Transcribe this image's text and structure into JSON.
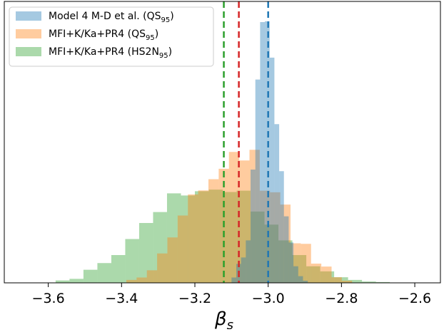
{
  "chart_data": {
    "type": "histogram",
    "xlabel": "β",
    "xlabel_sub": "s",
    "xlim": [
      -3.72,
      -2.53
    ],
    "ylim": [
      0,
      1.0
    ],
    "y_ticks_shown": false,
    "x_ticks": [
      {
        "value": -3.6,
        "label": "−3.6"
      },
      {
        "value": -3.4,
        "label": "−3.4"
      },
      {
        "value": -3.2,
        "label": "−3.2"
      },
      {
        "value": -3.0,
        "label": "−3.0"
      },
      {
        "value": -2.8,
        "label": "−2.8"
      },
      {
        "value": -2.6,
        "label": "−2.6"
      }
    ],
    "legend": {
      "placement": "top-left",
      "entries": [
        {
          "label": "Model  4  M-D et  al. (QS",
          "sub": "95",
          "suffix": ")",
          "series": "model4"
        },
        {
          "label": "MFI+K/Ka+PR4 (QS",
          "sub": "95",
          "suffix": ")",
          "series": "mfi_qs"
        },
        {
          "label": "MFI+K/Ka+PR4 (HS2N",
          "sub": "95",
          "suffix": ")",
          "series": "mfi_hs2n"
        }
      ]
    },
    "series": [
      {
        "id": "model4",
        "color": "#1f77b4",
        "alpha": 0.4,
        "bins": [
          {
            "x0": -3.1,
            "x1": -3.087,
            "h": 0.02
          },
          {
            "x0": -3.087,
            "x1": -3.074,
            "h": 0.071
          },
          {
            "x0": -3.074,
            "x1": -3.061,
            "h": 0.095
          },
          {
            "x0": -3.061,
            "x1": -3.048,
            "h": 0.159
          },
          {
            "x0": -3.048,
            "x1": -3.035,
            "h": 0.424
          },
          {
            "x0": -3.035,
            "x1": -3.022,
            "h": 0.761
          },
          {
            "x0": -3.022,
            "x1": -3.009,
            "h": 0.976
          },
          {
            "x0": -3.009,
            "x1": -2.996,
            "h": 0.979
          },
          {
            "x0": -2.996,
            "x1": -2.983,
            "h": 0.843
          },
          {
            "x0": -2.983,
            "x1": -2.97,
            "h": 0.594
          },
          {
            "x0": -2.97,
            "x1": -2.957,
            "h": 0.418
          },
          {
            "x0": -2.957,
            "x1": -2.944,
            "h": 0.249
          },
          {
            "x0": -2.944,
            "x1": -2.931,
            "h": 0.151
          },
          {
            "x0": -2.931,
            "x1": -2.918,
            "h": 0.062
          },
          {
            "x0": -2.918,
            "x1": -2.905,
            "h": 0.025
          },
          {
            "x0": -2.905,
            "x1": -2.892,
            "h": 0.008
          }
        ]
      },
      {
        "id": "mfi_qs",
        "color": "#ff7f0e",
        "alpha": 0.4,
        "bins": [
          {
            "x0": -3.387,
            "x1": -3.359,
            "h": 0.011
          },
          {
            "x0": -3.359,
            "x1": -3.331,
            "h": 0.02
          },
          {
            "x0": -3.331,
            "x1": -3.303,
            "h": 0.047
          },
          {
            "x0": -3.303,
            "x1": -3.275,
            "h": 0.11
          },
          {
            "x0": -3.275,
            "x1": -3.247,
            "h": 0.17
          },
          {
            "x0": -3.247,
            "x1": -3.219,
            "h": 0.252
          },
          {
            "x0": -3.219,
            "x1": -3.191,
            "h": 0.331
          },
          {
            "x0": -3.191,
            "x1": -3.163,
            "h": 0.346
          },
          {
            "x0": -3.163,
            "x1": -3.135,
            "h": 0.388
          },
          {
            "x0": -3.135,
            "x1": -3.107,
            "h": 0.427
          },
          {
            "x0": -3.107,
            "x1": -3.079,
            "h": 0.49
          },
          {
            "x0": -3.079,
            "x1": -3.051,
            "h": 0.458
          },
          {
            "x0": -3.051,
            "x1": -3.023,
            "h": 0.498
          },
          {
            "x0": -3.023,
            "x1": -2.995,
            "h": 0.345
          },
          {
            "x0": -2.995,
            "x1": -2.967,
            "h": 0.339
          },
          {
            "x0": -2.967,
            "x1": -2.939,
            "h": 0.293
          },
          {
            "x0": -2.939,
            "x1": -2.911,
            "h": 0.148
          },
          {
            "x0": -2.911,
            "x1": -2.883,
            "h": 0.146
          },
          {
            "x0": -2.883,
            "x1": -2.855,
            "h": 0.072
          },
          {
            "x0": -2.855,
            "x1": -2.827,
            "h": 0.061
          },
          {
            "x0": -2.827,
            "x1": -2.799,
            "h": 0.021
          },
          {
            "x0": -2.799,
            "x1": -2.771,
            "h": 0.008
          }
        ]
      },
      {
        "id": "mfi_hs2n",
        "color": "#2ca02c",
        "alpha": 0.4,
        "bins": [
          {
            "x0": -3.58,
            "x1": -3.542,
            "h": 0.009
          },
          {
            "x0": -3.542,
            "x1": -3.504,
            "h": 0.015
          },
          {
            "x0": -3.504,
            "x1": -3.466,
            "h": 0.049
          },
          {
            "x0": -3.466,
            "x1": -3.428,
            "h": 0.074
          },
          {
            "x0": -3.428,
            "x1": -3.39,
            "h": 0.104
          },
          {
            "x0": -3.39,
            "x1": -3.352,
            "h": 0.164
          },
          {
            "x0": -3.352,
            "x1": -3.314,
            "h": 0.224
          },
          {
            "x0": -3.314,
            "x1": -3.276,
            "h": 0.265
          },
          {
            "x0": -3.276,
            "x1": -3.238,
            "h": 0.335
          },
          {
            "x0": -3.238,
            "x1": -3.2,
            "h": 0.327
          },
          {
            "x0": -3.2,
            "x1": -3.162,
            "h": 0.343
          },
          {
            "x0": -3.162,
            "x1": -3.124,
            "h": 0.349
          },
          {
            "x0": -3.124,
            "x1": -3.086,
            "h": 0.34
          },
          {
            "x0": -3.086,
            "x1": -3.048,
            "h": 0.345
          },
          {
            "x0": -3.048,
            "x1": -3.01,
            "h": 0.267
          },
          {
            "x0": -3.01,
            "x1": -2.972,
            "h": 0.218
          },
          {
            "x0": -2.972,
            "x1": -2.934,
            "h": 0.159
          },
          {
            "x0": -2.934,
            "x1": -2.896,
            "h": 0.104
          },
          {
            "x0": -2.896,
            "x1": -2.858,
            "h": 0.062
          },
          {
            "x0": -2.858,
            "x1": -2.82,
            "h": 0.043
          },
          {
            "x0": -2.82,
            "x1": -2.782,
            "h": 0.021
          },
          {
            "x0": -2.782,
            "x1": -2.744,
            "h": 0.011
          },
          {
            "x0": -2.744,
            "x1": -2.706,
            "h": 0.005
          },
          {
            "x0": -2.706,
            "x1": -2.668,
            "h": 0.003
          }
        ]
      }
    ],
    "vlines": [
      {
        "x": -3.121,
        "color": "#2ca02c",
        "series": "mfi_hs2n"
      },
      {
        "x": -3.08,
        "color": "#d62728",
        "series": "mfi_qs"
      },
      {
        "x": -3.0,
        "color": "#1f77b4",
        "series": "model4"
      }
    ]
  }
}
